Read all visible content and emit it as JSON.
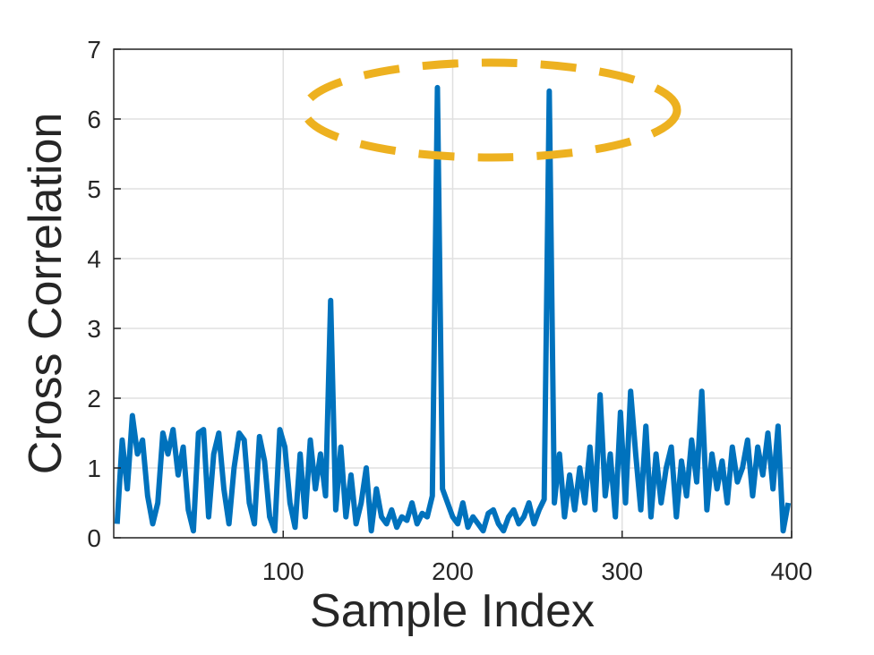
{
  "chart_data": {
    "type": "line",
    "x_label": "Sample Index",
    "y_label": "Cross Correlation",
    "xlim": [
      0,
      400
    ],
    "ylim": [
      0,
      7
    ],
    "xticks": [
      100,
      200,
      300,
      400
    ],
    "yticks": [
      0,
      1,
      2,
      3,
      4,
      5,
      6,
      7
    ],
    "grid": true,
    "series": [
      {
        "color": "#0072bd",
        "x": [
          2,
          5,
          8,
          11,
          14,
          17,
          20,
          23,
          26,
          29,
          32,
          35,
          38,
          41,
          44,
          47,
          50,
          53,
          56,
          59,
          62,
          65,
          68,
          71,
          74,
          77,
          80,
          83,
          86,
          89,
          92,
          95,
          98,
          101,
          104,
          107,
          110,
          113,
          116,
          119,
          122,
          125,
          128,
          131,
          134,
          137,
          140,
          143,
          146,
          149,
          152,
          155,
          158,
          161,
          164,
          167,
          170,
          173,
          176,
          179,
          182,
          185,
          188,
          191,
          194,
          197,
          200,
          203,
          206,
          209,
          212,
          215,
          218,
          221,
          224,
          227,
          230,
          233,
          236,
          239,
          242,
          245,
          248,
          251,
          254,
          257,
          260,
          263,
          266,
          269,
          272,
          275,
          278,
          281,
          284,
          287,
          290,
          293,
          296,
          299,
          302,
          305,
          308,
          311,
          314,
          317,
          320,
          323,
          326,
          329,
          332,
          335,
          338,
          341,
          344,
          347,
          350,
          353,
          356,
          359,
          362,
          365,
          368,
          371,
          374,
          377,
          380,
          383,
          386,
          389,
          392,
          395,
          398
        ],
        "values": [
          0.2,
          1.4,
          0.7,
          1.75,
          1.2,
          1.4,
          0.6,
          0.2,
          0.5,
          1.5,
          1.2,
          1.55,
          0.9,
          1.3,
          0.4,
          0.1,
          1.5,
          1.55,
          0.3,
          1.2,
          1.5,
          0.7,
          0.2,
          1.0,
          1.5,
          1.4,
          0.5,
          0.2,
          1.45,
          1.1,
          0.3,
          0.1,
          1.55,
          1.3,
          0.5,
          0.15,
          1.2,
          0.3,
          1.4,
          0.7,
          1.2,
          0.6,
          3.4,
          0.4,
          1.3,
          0.3,
          0.9,
          0.2,
          0.5,
          1.0,
          0.1,
          0.7,
          0.3,
          0.2,
          0.4,
          0.15,
          0.3,
          0.25,
          0.5,
          0.2,
          0.35,
          0.3,
          0.6,
          6.45,
          0.7,
          0.5,
          0.3,
          0.2,
          0.5,
          0.15,
          0.3,
          0.2,
          0.1,
          0.35,
          0.4,
          0.2,
          0.1,
          0.3,
          0.4,
          0.2,
          0.3,
          0.5,
          0.2,
          0.4,
          0.55,
          6.4,
          0.5,
          1.2,
          0.3,
          0.9,
          0.4,
          1.0,
          0.5,
          1.3,
          0.4,
          2.05,
          0.6,
          1.2,
          0.3,
          1.8,
          0.5,
          2.1,
          1.2,
          0.4,
          1.6,
          0.3,
          1.2,
          0.5,
          1.0,
          1.3,
          0.3,
          1.1,
          0.6,
          1.4,
          0.8,
          2.1,
          0.4,
          1.2,
          0.7,
          1.1,
          0.5,
          1.3,
          0.8,
          1.0,
          1.4,
          0.6,
          1.3,
          0.9,
          1.5,
          0.7,
          1.6,
          0.1,
          0.5
        ]
      }
    ]
  }
}
